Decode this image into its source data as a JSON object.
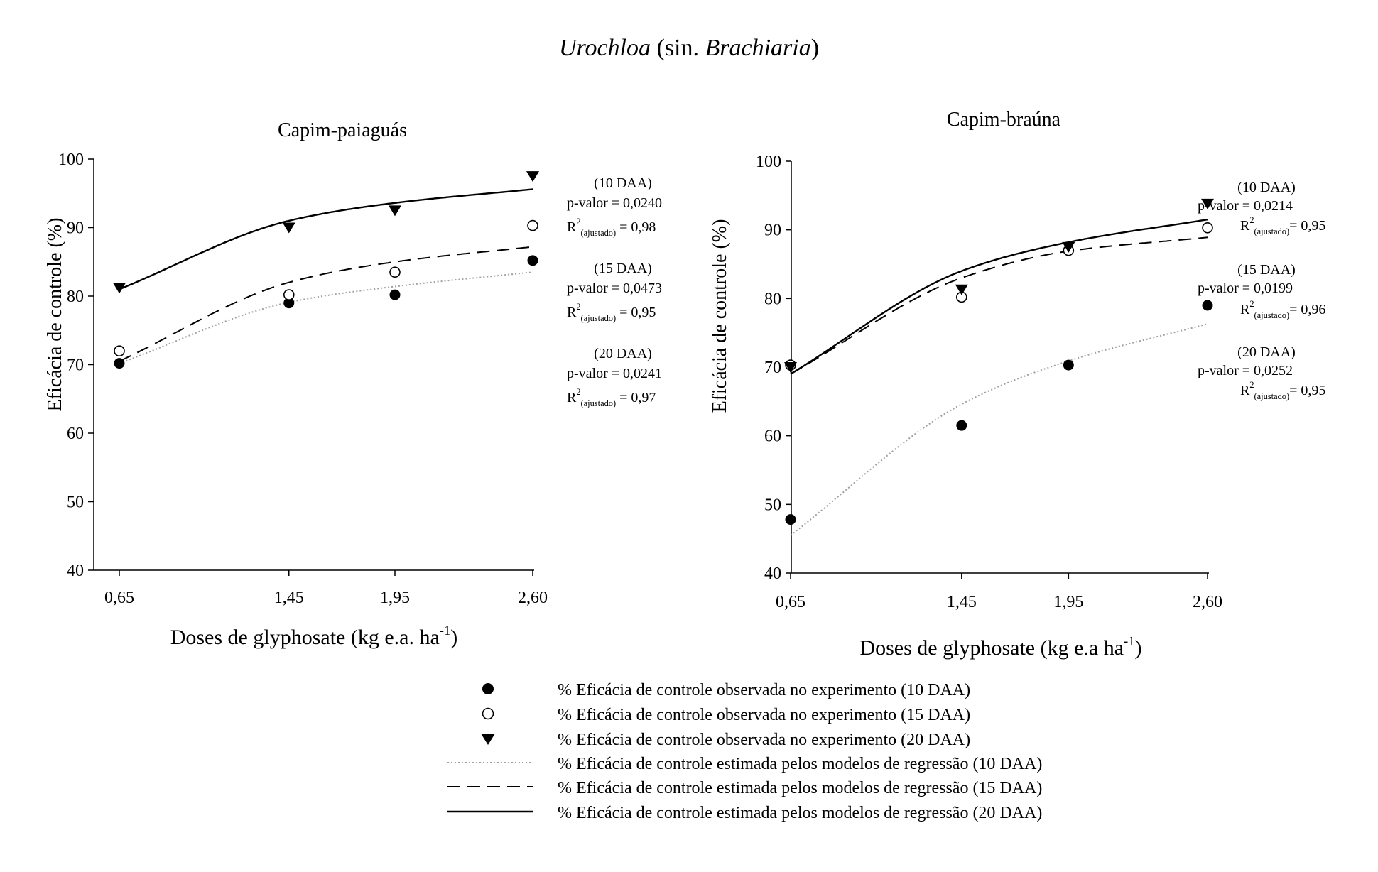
{
  "figure_title": {
    "italic_1": "Urochloa",
    "plain": " (sin. ",
    "italic_2": "Brachiaria",
    "close": ")"
  },
  "colors": {
    "ink": "#000000",
    "dotted_line": "#a0a0a0",
    "background": "#ffffff"
  },
  "legend": [
    {
      "marker": "filled-circle",
      "label": "% Eficácia de controle observada no experimento (10 DAA)"
    },
    {
      "marker": "open-circle",
      "label": "% Eficácia de controle observada no experimento (15 DAA)"
    },
    {
      "marker": "filled-triangle-down",
      "label": "% Eficácia de controle observada no experimento (20 DAA)"
    },
    {
      "line": "dotted",
      "label": "% Eficácia de controle estimada pelos modelos de regressão (10 DAA)"
    },
    {
      "line": "dashed",
      "label": "% Eficácia de controle estimada pelos modelos de regressão (15 DAA)"
    },
    {
      "line": "solid",
      "label": "% Eficácia de controle estimada pelos modelos de regressão (20 DAA)"
    }
  ],
  "chart_data": [
    {
      "type": "scatter",
      "title": "Capim-paiaguás",
      "xlabel": "Doses de glyphosate (kg e.a. ha",
      "xlabel_sup": "-1",
      "xlabel_end": ")",
      "ylabel": "Eficácia de controle (%)",
      "x": [
        0.65,
        1.45,
        1.95,
        2.6
      ],
      "xticks": [
        "0,65",
        "1,45",
        "1,95",
        "2,60"
      ],
      "yticks": [
        40,
        50,
        60,
        70,
        80,
        90,
        100
      ],
      "ylim": [
        40,
        100
      ],
      "series": [
        {
          "name": "10 DAA",
          "marker": "filled-circle",
          "line": "dotted",
          "values": [
            70.2,
            79.0,
            80.2,
            85.2
          ],
          "fit": [
            70.2,
            79.1,
            81.4,
            83.5
          ]
        },
        {
          "name": "15 DAA",
          "marker": "open-circle",
          "line": "dashed",
          "values": [
            72.0,
            80.2,
            83.5,
            90.3
          ],
          "fit": [
            70.5,
            82.0,
            85.0,
            87.2
          ]
        },
        {
          "name": "20 DAA",
          "marker": "filled-triangle-down",
          "line": "solid",
          "values": [
            81.2,
            90.0,
            92.5,
            97.5
          ],
          "fit": [
            81.0,
            91.0,
            93.6,
            95.6
          ]
        }
      ],
      "annotations": [
        {
          "header": "(10 DAA)",
          "pvalue": "p-valor = 0,0240",
          "r2_base": "R",
          "r2_sup": "2",
          "r2_sub": "(ajustado)",
          "r2_value": " = 0,98"
        },
        {
          "header": "(15 DAA)",
          "pvalue": "p-valor = 0,0473",
          "r2_base": "R",
          "r2_sup": "2",
          "r2_sub": "(ajustado)",
          "r2_value": " = 0,95"
        },
        {
          "header": "(20 DAA)",
          "pvalue": "p-valor = 0,0241",
          "r2_base": "R",
          "r2_sup": "2",
          "r2_sub": "(ajustado)",
          "r2_value": " = 0,97"
        }
      ]
    },
    {
      "type": "scatter",
      "title": "Capim-braúna",
      "xlabel": "Doses de glyphosate (kg e.a ha",
      "xlabel_sup": "-1",
      "xlabel_end": ")",
      "ylabel": "Eficácia de controle (%)",
      "x": [
        0.65,
        1.45,
        1.95,
        2.6
      ],
      "xticks": [
        "0,65",
        "1,45",
        "1,95",
        "2,60"
      ],
      "yticks": [
        40,
        50,
        60,
        70,
        80,
        90,
        100
      ],
      "ylim": [
        40,
        100
      ],
      "series": [
        {
          "name": "10 DAA",
          "marker": "filled-circle",
          "line": "dotted",
          "values": [
            47.8,
            61.5,
            70.3,
            79.0
          ],
          "fit": [
            45.5,
            64.6,
            70.9,
            76.3
          ]
        },
        {
          "name": "15 DAA",
          "marker": "open-circle",
          "line": "dashed",
          "values": [
            70.3,
            80.2,
            87.0,
            90.3
          ],
          "fit": [
            69.0,
            83.0,
            86.9,
            88.9
          ]
        },
        {
          "name": "20 DAA",
          "marker": "filled-triangle-down",
          "line": "solid",
          "values": [
            70.0,
            81.3,
            87.5,
            93.8
          ],
          "fit": [
            69.0,
            84.0,
            88.2,
            91.5
          ]
        }
      ],
      "annotations": [
        {
          "header": "(10 DAA)",
          "pvalue": "p-valor = 0,0214",
          "r2_base": "R",
          "r2_sup": "2",
          "r2_sub": "(ajustado)",
          "r2_value": "= 0,95"
        },
        {
          "header": "(15 DAA)",
          "pvalue": "p-valor = 0,0199",
          "r2_base": "R",
          "r2_sup": "2",
          "r2_sub": "(ajustado)",
          "r2_value": "= 0,96"
        },
        {
          "header": "(20 DAA)",
          "pvalue": "p-valor = 0,0252",
          "r2_base": "R",
          "r2_sup": "2",
          "r2_sub": "(ajustado)",
          "r2_value": "= 0,95"
        }
      ]
    }
  ]
}
